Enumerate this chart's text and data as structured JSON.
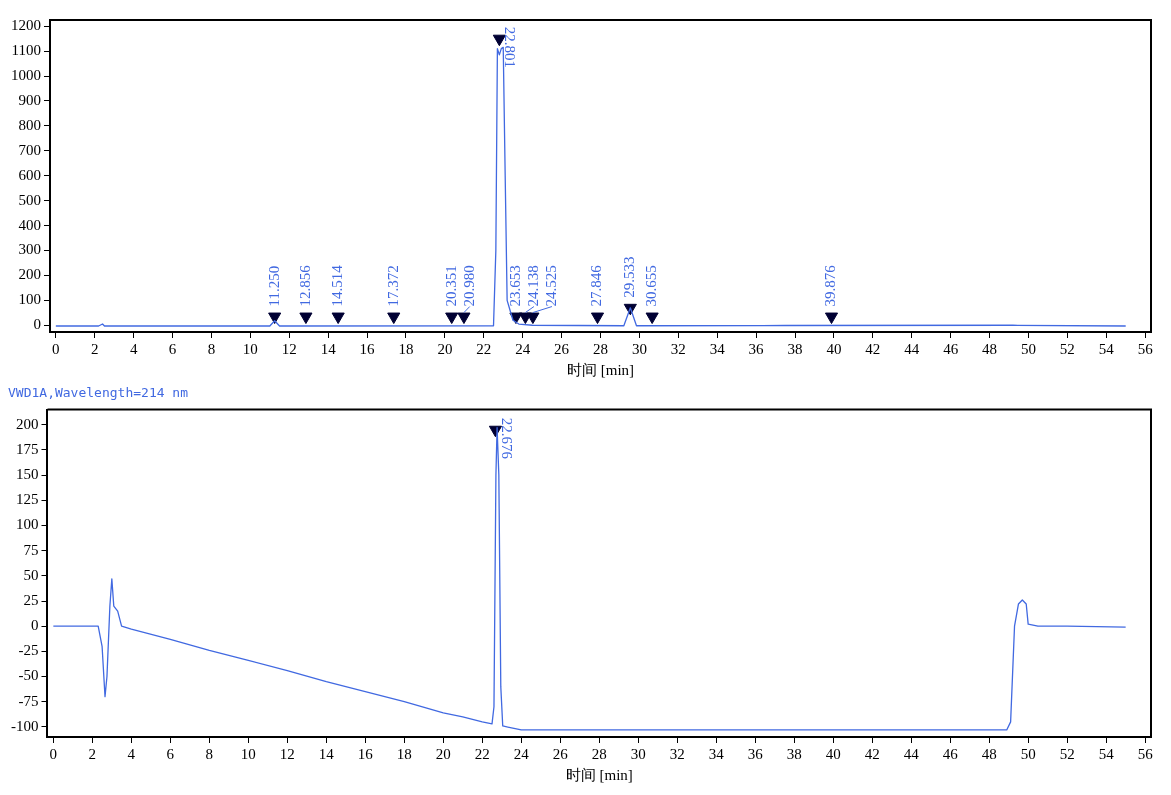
{
  "chart_data": [
    {
      "type": "line",
      "xlabel": "时间 [min]",
      "xlim": [
        -0.3,
        56.3
      ],
      "xticks": [
        0,
        2,
        4,
        6,
        8,
        10,
        12,
        14,
        16,
        18,
        20,
        22,
        24,
        26,
        28,
        30,
        32,
        34,
        36,
        38,
        40,
        42,
        44,
        46,
        48,
        50,
        52,
        54,
        56
      ],
      "ylim": [
        -27,
        1225
      ],
      "yticks": [
        0,
        100,
        200,
        300,
        400,
        500,
        600,
        700,
        800,
        900,
        1000,
        1100,
        1200
      ],
      "grid": false,
      "legend": false,
      "series": [
        {
          "type": "line",
          "color": "#4169e1",
          "marker": "none",
          "x": [
            0,
            2.2,
            2.4,
            2.5,
            11.0,
            11.25,
            11.5,
            22.5,
            22.62,
            22.7,
            22.8,
            22.9,
            23.0,
            23.1,
            23.2,
            23.5,
            23.8,
            24.5,
            29.2,
            29.533,
            29.85,
            37.5,
            49.2,
            55
          ],
          "values": [
            -3,
            -3,
            5,
            -3,
            -3,
            18,
            -3,
            -2,
            300,
            1110,
            1085,
            1110,
            1115,
            600,
            100,
            20,
            5,
            0,
            -2,
            70,
            -2,
            -1,
            0,
            -3
          ]
        },
        {
          "type": "scatter",
          "color": "#000033",
          "marker": "triangle",
          "x": [
            11.25,
            12.856,
            14.514,
            17.372,
            20.351,
            20.98,
            22.801,
            23.653,
            24.138,
            24.525,
            27.846,
            29.533,
            30.655,
            39.876
          ],
          "values": [
            35,
            35,
            35,
            35,
            35,
            35,
            1150,
            35,
            35,
            35,
            35,
            70,
            35,
            35
          ]
        }
      ],
      "annotations": [
        {
          "text": "11.250",
          "x": 11.25,
          "y": 35
        },
        {
          "text": "12.856",
          "x": 12.856,
          "y": 35
        },
        {
          "text": "14.514",
          "x": 14.514,
          "y": 35
        },
        {
          "text": "17.372",
          "x": 17.372,
          "y": 35
        },
        {
          "text": "20.351",
          "x": 20.351,
          "y": 35
        },
        {
          "text": "20.980",
          "x": 20.98,
          "y": 35
        },
        {
          "text": "22.801",
          "x": 22.801,
          "y": 1150
        },
        {
          "text": "23.653",
          "x": 23.653,
          "y": 35
        },
        {
          "text": "24.138",
          "x": 24.138,
          "y": 35
        },
        {
          "text": "24.525",
          "x": 24.525,
          "y": 35
        },
        {
          "text": "27.846",
          "x": 27.846,
          "y": 35
        },
        {
          "text": "29.533",
          "x": 29.533,
          "y": 70
        },
        {
          "text": "30.655",
          "x": 30.655,
          "y": 35
        },
        {
          "text": "39.876",
          "x": 39.876,
          "y": 35
        }
      ]
    },
    {
      "type": "line",
      "title": "VWD1A,Wavelength=214 nm",
      "xlabel": "时间 [min]",
      "xlim": [
        -0.3,
        56.3
      ],
      "xticks": [
        0,
        2,
        4,
        6,
        8,
        10,
        12,
        14,
        16,
        18,
        20,
        22,
        24,
        26,
        28,
        30,
        32,
        34,
        36,
        38,
        40,
        42,
        44,
        46,
        48,
        50,
        52,
        54,
        56
      ],
      "ylim": [
        -110,
        215
      ],
      "yticks": [
        -100,
        -75,
        -50,
        -25,
        0,
        25,
        50,
        75,
        100,
        125,
        150,
        175,
        200
      ],
      "grid": false,
      "legend": false,
      "series": [
        {
          "type": "line",
          "color": "#4169e1",
          "marker": "none",
          "x": [
            0,
            2,
            2.3,
            2.5,
            2.65,
            2.75,
            2.9,
            3.0,
            3.1,
            3.3,
            3.5,
            4,
            6,
            8,
            10,
            12,
            14,
            16,
            18,
            20,
            21,
            22,
            22.5,
            22.6,
            22.7,
            22.76,
            22.85,
            22.95,
            23.05,
            23.5,
            24,
            30,
            40,
            48.9,
            49.1,
            49.3,
            49.5,
            49.7,
            49.9,
            50,
            50.5,
            52,
            55
          ],
          "values": [
            0,
            0,
            0,
            -20,
            -70,
            -50,
            20,
            47,
            20,
            15,
            0,
            -3,
            -13,
            -24,
            -34,
            -44,
            -55,
            -65,
            -75,
            -86,
            -90,
            -95,
            -97,
            -80,
            150,
            197,
            150,
            -60,
            -99,
            -101,
            -103,
            -103,
            -103,
            -103,
            -95,
            0,
            22,
            26,
            22,
            2,
            0,
            0,
            -1
          ]
        },
        {
          "type": "scatter",
          "color": "#000033",
          "marker": "triangle",
          "x": [
            22.676
          ],
          "values": [
            195
          ]
        }
      ],
      "annotations": [
        {
          "text": "22.676",
          "x": 22.676,
          "y": 195
        }
      ]
    }
  ]
}
